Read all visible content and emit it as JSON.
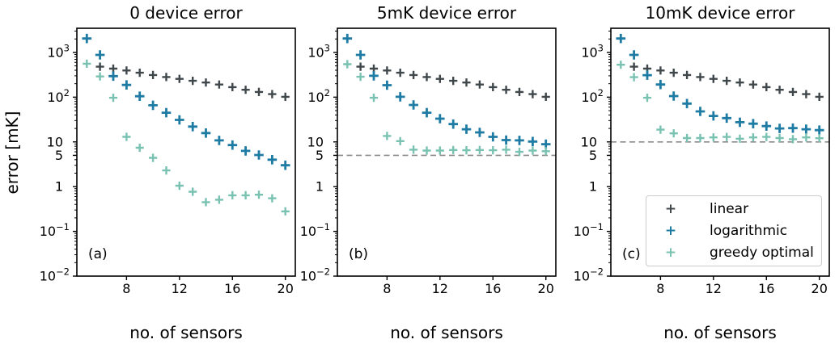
{
  "figure": {
    "ylabel": "error [mK]",
    "background": "#ffffff",
    "axis_color": "#000000",
    "dashed_line_color": "#8c8c8c"
  },
  "legend": {
    "items": [
      {
        "label": "linear",
        "marker": "+",
        "color": "#3f474b"
      },
      {
        "label": "logarithmic",
        "marker": "+",
        "color": "#1e7ba3"
      },
      {
        "label": "greedy optimal",
        "marker": "+",
        "color": "#79c2b2"
      }
    ]
  },
  "chart_data": [
    {
      "type": "scatter",
      "title": "0 device error",
      "panel_label": "(a)",
      "xlabel": "no. of sensors",
      "ylabel": "error [mK]",
      "x_axis": {
        "lim": [
          4.25,
          20.75
        ],
        "ticks": [
          8,
          12,
          16,
          20
        ]
      },
      "y_axis": {
        "scale": "log",
        "lim": [
          0.01,
          3470
        ],
        "ticks": [
          {
            "v": 1000,
            "label": "10^3"
          },
          {
            "v": 100,
            "label": "10^2"
          },
          {
            "v": 10,
            "label": "10"
          },
          {
            "v": 5,
            "label": "5"
          },
          {
            "v": 1,
            "label": "1"
          },
          {
            "v": 0.1,
            "label": "10^-1"
          },
          {
            "v": 0.01,
            "label": "10^-2"
          }
        ]
      },
      "reference_line_y": null,
      "show_legend": false,
      "series": [
        {
          "name": "linear",
          "color": "#3f474b",
          "marker": "+",
          "x": [
            6,
            7,
            8,
            9,
            10,
            11,
            12,
            13,
            14,
            15,
            16,
            17,
            18,
            19,
            20
          ],
          "y": [
            480,
            435,
            395,
            352,
            313,
            282,
            256,
            232,
            213,
            192,
            168,
            146,
            131,
            117,
            102
          ]
        },
        {
          "name": "logarithmic",
          "color": "#1e7ba3",
          "marker": "+",
          "x": [
            5,
            6,
            7,
            8,
            9,
            10,
            11,
            12,
            13,
            14,
            15,
            16,
            17,
            18,
            19,
            20
          ],
          "y": [
            2050,
            880,
            295,
            188,
            105,
            66,
            45,
            31,
            22,
            15.8,
            10.8,
            8.5,
            6.3,
            5.1,
            4.0,
            3.0
          ]
        },
        {
          "name": "greedy optimal",
          "color": "#79c2b2",
          "marker": "+",
          "x": [
            5,
            6,
            7,
            8,
            9,
            10,
            11,
            12,
            13,
            14,
            15,
            16,
            17,
            18,
            19,
            20
          ],
          "y": [
            560,
            290,
            97,
            13,
            7.4,
            4.4,
            2.3,
            1.05,
            0.77,
            0.45,
            0.51,
            0.64,
            0.64,
            0.66,
            0.55,
            0.28
          ]
        }
      ]
    },
    {
      "type": "scatter",
      "title": "5mK device error",
      "panel_label": "(b)",
      "xlabel": "no. of sensors",
      "ylabel": "error [mK]",
      "x_axis": {
        "lim": [
          4.25,
          20.75
        ],
        "ticks": [
          8,
          12,
          16,
          20
        ]
      },
      "y_axis": {
        "scale": "log",
        "lim": [
          0.01,
          3470
        ],
        "ticks": [
          {
            "v": 1000,
            "label": "10^3"
          },
          {
            "v": 100,
            "label": "10^2"
          },
          {
            "v": 10,
            "label": "10"
          },
          {
            "v": 5,
            "label": "5"
          },
          {
            "v": 1,
            "label": "1"
          },
          {
            "v": 0.1,
            "label": "10^-1"
          },
          {
            "v": 0.01,
            "label": "10^-2"
          }
        ]
      },
      "reference_line_y": 5,
      "show_legend": false,
      "series": [
        {
          "name": "linear",
          "color": "#3f474b",
          "marker": "+",
          "x": [
            6,
            7,
            8,
            9,
            10,
            11,
            12,
            13,
            14,
            15,
            16,
            17,
            18,
            19,
            20
          ],
          "y": [
            480,
            435,
            395,
            352,
            313,
            282,
            256,
            232,
            213,
            192,
            168,
            146,
            131,
            117,
            102
          ]
        },
        {
          "name": "logarithmic",
          "color": "#1e7ba3",
          "marker": "+",
          "x": [
            5,
            6,
            7,
            8,
            9,
            10,
            11,
            12,
            13,
            14,
            15,
            16,
            17,
            18,
            19,
            20
          ],
          "y": [
            2050,
            880,
            300,
            185,
            102,
            67,
            45,
            33,
            25,
            19.2,
            16.3,
            13,
            11,
            10.8,
            10.2,
            8.9
          ]
        },
        {
          "name": "greedy optimal",
          "color": "#79c2b2",
          "marker": "+",
          "x": [
            5,
            6,
            7,
            8,
            9,
            10,
            11,
            12,
            13,
            14,
            15,
            16,
            17,
            18,
            19,
            20
          ],
          "y": [
            545,
            285,
            97,
            13.6,
            10.4,
            6.7,
            6.4,
            6.4,
            6.6,
            6.5,
            6.6,
            6.5,
            6.7,
            6.0,
            6.4,
            6.2
          ]
        }
      ]
    },
    {
      "type": "scatter",
      "title": "10mK device error",
      "panel_label": "(c)",
      "xlabel": "no. of sensors",
      "ylabel": "error [mK]",
      "x_axis": {
        "lim": [
          4.25,
          20.75
        ],
        "ticks": [
          8,
          12,
          16,
          20
        ]
      },
      "y_axis": {
        "scale": "log",
        "lim": [
          0.01,
          3470
        ],
        "ticks": [
          {
            "v": 1000,
            "label": "10^3"
          },
          {
            "v": 100,
            "label": "10^2"
          },
          {
            "v": 10,
            "label": "10"
          },
          {
            "v": 5,
            "label": "5"
          },
          {
            "v": 1,
            "label": "1"
          },
          {
            "v": 0.1,
            "label": "10^-1"
          },
          {
            "v": 0.01,
            "label": "10^-2"
          }
        ]
      },
      "reference_line_y": 10,
      "show_legend": true,
      "series": [
        {
          "name": "linear",
          "color": "#3f474b",
          "marker": "+",
          "x": [
            6,
            7,
            8,
            9,
            10,
            11,
            12,
            13,
            14,
            15,
            16,
            17,
            18,
            19,
            20
          ],
          "y": [
            480,
            435,
            395,
            352,
            313,
            282,
            256,
            232,
            213,
            192,
            168,
            146,
            131,
            117,
            102
          ]
        },
        {
          "name": "logarithmic",
          "color": "#1e7ba3",
          "marker": "+",
          "x": [
            5,
            6,
            7,
            8,
            9,
            10,
            11,
            12,
            13,
            14,
            15,
            16,
            17,
            18,
            19,
            20
          ],
          "y": [
            2050,
            880,
            310,
            192,
            106,
            72,
            48,
            38,
            34,
            27.5,
            25.5,
            22.5,
            20,
            20.3,
            19.2,
            18.3
          ]
        },
        {
          "name": "greedy optimal",
          "color": "#79c2b2",
          "marker": "+",
          "x": [
            5,
            6,
            7,
            8,
            9,
            10,
            11,
            12,
            13,
            14,
            15,
            16,
            17,
            18,
            19,
            20
          ],
          "y": [
            530,
            280,
            97,
            18.8,
            15.5,
            12.2,
            12.2,
            12.6,
            12.9,
            11.8,
            12.6,
            12.9,
            12.2,
            11.5,
            12.6,
            12.1
          ]
        }
      ]
    }
  ]
}
